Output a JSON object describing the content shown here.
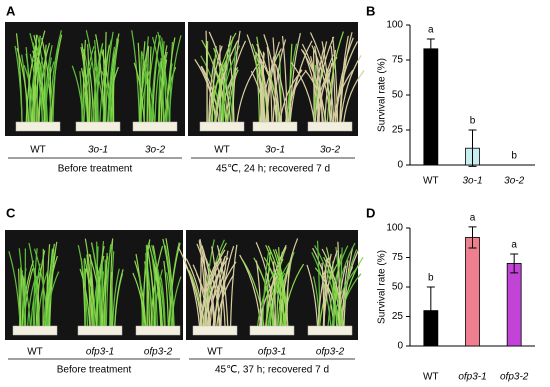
{
  "figure": {
    "panel_labels": [
      "A",
      "B",
      "C",
      "D"
    ],
    "photo_rows": [
      {
        "before_labels": [
          "WT",
          "3o-1",
          "3o-2"
        ],
        "before_caption": "Before treatment",
        "after_labels": [
          "WT",
          "3o-1",
          "3o-2"
        ],
        "after_caption": "45℃, 24 h; recovered 7 d"
      },
      {
        "before_labels": [
          "WT",
          "ofp3-1",
          "ofp3-2"
        ],
        "before_caption": "Before treatment",
        "after_labels": [
          "WT",
          "ofp3-1",
          "ofp3-2"
        ],
        "after_caption": "45℃, 37 h; recovered 7 d"
      }
    ]
  },
  "chart_data": [
    {
      "type": "bar",
      "y_label": "Survival rate (%)",
      "categories": [
        "WT",
        "3o-1",
        "3o-2"
      ],
      "values": [
        83,
        12,
        0
      ],
      "errors": [
        7,
        13,
        0
      ],
      "significance": [
        "a",
        "b",
        "b"
      ],
      "colors": [
        "#000000",
        "#c6eef0",
        "#ffffff"
      ],
      "ylim": [
        0,
        100
      ],
      "yticks": [
        0,
        25,
        50,
        75,
        100
      ]
    },
    {
      "type": "bar",
      "y_label": "Survival rate (%)",
      "categories": [
        "WT",
        "ofp3-1",
        "ofp3-2"
      ],
      "values": [
        30,
        92,
        70
      ],
      "errors": [
        20,
        9,
        8
      ],
      "significance": [
        "b",
        "a",
        "a"
      ],
      "colors": [
        "#000000",
        "#ee7f8e",
        "#c244d6"
      ],
      "ylim": [
        0,
        100
      ],
      "yticks": [
        0,
        25,
        50,
        75,
        100
      ]
    }
  ]
}
